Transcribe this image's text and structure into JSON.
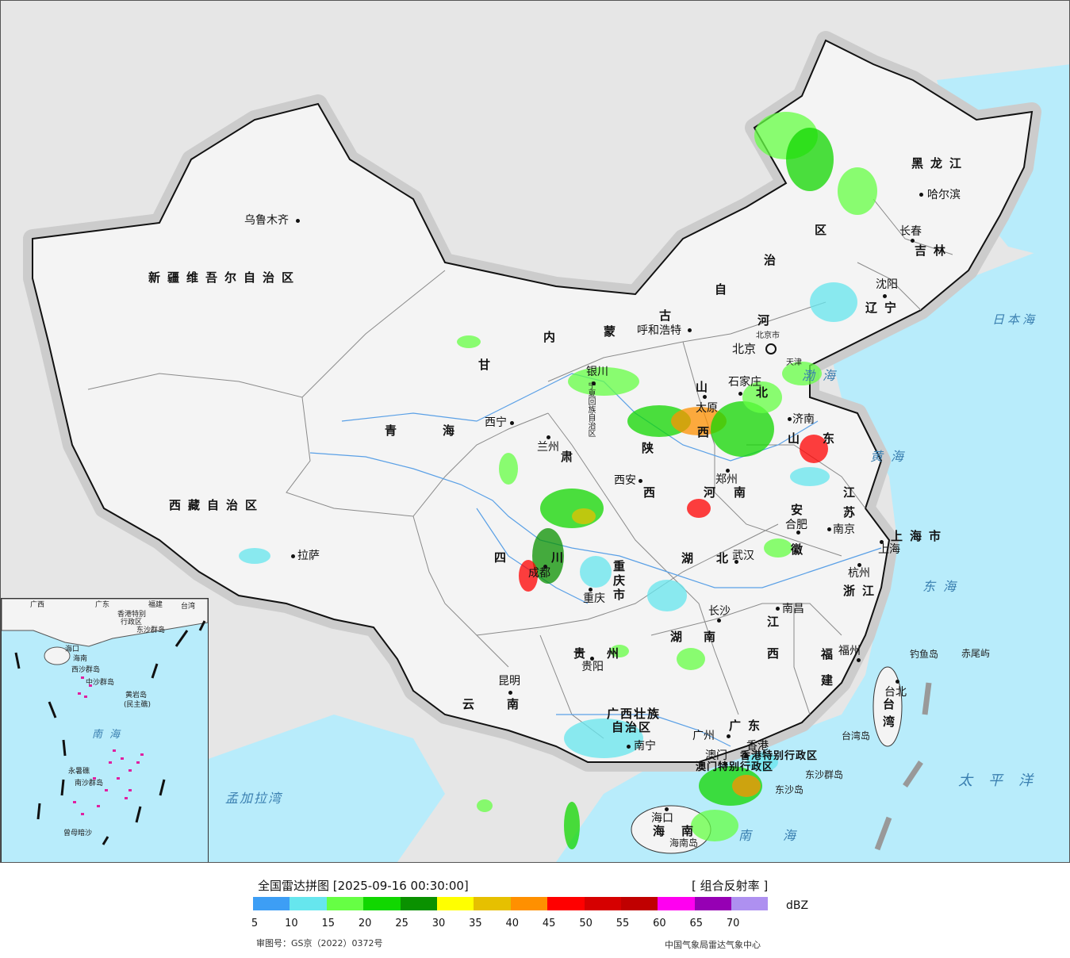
{
  "legend": {
    "title": "全国雷达拼图 [2025-09-16 00:30:00]",
    "product": "[ 组合反射率 ]",
    "unit": "dBZ",
    "colors": [
      "#3d9ef5",
      "#66e6ee",
      "#66ff44",
      "#11d700",
      "#0a9100",
      "#ffff00",
      "#e6c000",
      "#ff9000",
      "#ff0000",
      "#d60000",
      "#c00000",
      "#ff00f0",
      "#9600b4",
      "#ae90f0"
    ],
    "ticks": [
      "5",
      "10",
      "15",
      "20",
      "25",
      "30",
      "35",
      "40",
      "45",
      "50",
      "55",
      "60",
      "65",
      "70"
    ]
  },
  "footer": {
    "approval": "审图号：GS京（2022）0372号",
    "agency": "中国气象局雷达气象中心"
  },
  "regions": {
    "xinjiang": "新疆维吾尔自治区",
    "xizang": "西藏自治区",
    "qinghai_1": "青",
    "qinghai_2": "海",
    "gansu": "甘",
    "gansu_2": "肃",
    "neimenggu": [
      "内",
      "蒙",
      "古",
      "自",
      "治",
      "区"
    ],
    "heilongjiang": "黑龙江",
    "jilin": "吉林",
    "liaoning": "辽宁",
    "hebei_1": "河",
    "hebei_2": "北",
    "shanxi_1": "山",
    "shanxi_2": "西",
    "shaanxi_1": "陕",
    "shaanxi_2": "西",
    "henan_1": "河",
    "henan_2": "南",
    "shandong_1": "山",
    "shandong_2": "东",
    "jiangsu_1": "江",
    "jiangsu_2": "苏",
    "anhui_1": "安",
    "anhui_2": "徽",
    "shanghai": "上海市",
    "zhejiang": "浙江",
    "hubei_1": "湖",
    "hubei_2": "北",
    "hunan_1": "湖",
    "hunan_2": "南",
    "jiangxi_1": "江",
    "jiangxi_2": "西",
    "fujian_1": "福",
    "fujian_2": "建",
    "sichuan_1": "四",
    "sichuan_2": "川",
    "chongqing_1": "重",
    "chongqing_2": "庆",
    "chongqing_3": "市",
    "guizhou_1": "贵",
    "guizhou_2": "州",
    "yunnan_1": "云",
    "yunnan_2": "南",
    "guangxi_1": "广西壮族",
    "guangxi_2": "自治区",
    "guangdong": "广东",
    "hainan_1": "海",
    "hainan_2": "南",
    "taiwan_1": "台",
    "taiwan_2": "湾",
    "ningxia": "宁夏回族自治区",
    "tianjin": "天津",
    "hk": "香港特别行政区",
    "macao": "澳门特别行政区"
  },
  "cities": {
    "urumqi": "乌鲁木齐",
    "lhasa": "拉萨",
    "xining": "西宁",
    "lanzhou": "兰州",
    "yinchuan": "银川",
    "hohhot": "呼和浩特",
    "beijing": "北京",
    "beijing_small": "北京市",
    "shijiazhuang": "石家庄",
    "taiyuan": "太原",
    "jinan": "济南",
    "zhengzhou": "郑州",
    "xian": "西安",
    "hefei": "合肥",
    "nanjing": "南京",
    "shanghai": "上海",
    "hangzhou": "杭州",
    "wuhan": "武汉",
    "changsha": "长沙",
    "nanchang": "南昌",
    "fuzhou": "福州",
    "chengdu": "成都",
    "chongqing": "重庆",
    "guiyang": "贵阳",
    "kunming": "昆明",
    "nanning": "南宁",
    "guangzhou": "广州",
    "hongkong": "香港",
    "macau": "澳门",
    "haikou": "海口",
    "taipei": "台北",
    "harbin": "哈尔滨",
    "changchun": "长春",
    "shenyang": "沈阳",
    "tianjin": "天津"
  },
  "seas": {
    "japan": "日本海",
    "bohai": "渤海",
    "yellow": "黄海",
    "east": "东海",
    "pacific": "太平洋",
    "south": "南海",
    "bengal": "孟加拉湾"
  },
  "islands": {
    "diaoyu": "钓鱼岛",
    "chiwei": "赤尾屿",
    "taiwan_island": "台湾岛",
    "dongsha": "东沙群岛",
    "dongsha_2": "东沙岛",
    "hainan_island": "海南岛"
  },
  "inset": {
    "guangxi": "广西",
    "guangdong": "广东",
    "fujian": "福建",
    "taiwan": "台湾",
    "hk": "香港特别",
    "hk2": "行政区",
    "dongsha": "东沙群岛",
    "haikou": "海口",
    "hainan": "海南",
    "xisha": "西沙群岛",
    "zhongsha": "中沙群岛",
    "huangyan": "黄岩岛",
    "huangyan2": "(民主礁)",
    "nanhai": "南",
    "nanhai2": "海",
    "yongshu": "永暑礁",
    "nansha": "南沙群岛",
    "zengmu": "曾母暗沙"
  }
}
